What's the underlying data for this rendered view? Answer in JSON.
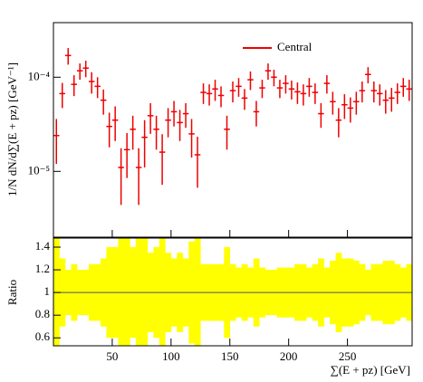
{
  "chart_data": [
    {
      "type": "errorbar",
      "ylabel": "1/N dN/d∑(E + pz) [GeV⁻¹]",
      "xlabel": "∑(E + pz) [GeV]",
      "log_y": true,
      "xlim": [
        0,
        305
      ],
      "xticks": [
        50,
        100,
        150,
        200,
        250
      ],
      "ylim": [
        2e-06,
        0.00038
      ],
      "yticks": [
        {
          "value": 1e-05,
          "label": "10⁻⁵"
        },
        {
          "value": 0.0001,
          "label": "10⁻⁴"
        }
      ],
      "legend_position": "upper right",
      "x": [
        2.5,
        7.5,
        12.5,
        17.5,
        22.5,
        27.5,
        32.5,
        37.5,
        42.5,
        47.5,
        52.5,
        57.5,
        62.5,
        67.5,
        72.5,
        77.5,
        82.5,
        87.5,
        92.5,
        97.5,
        102.5,
        107.5,
        112.5,
        117.5,
        122.5,
        127.5,
        132.5,
        137.5,
        142.5,
        147.5,
        152.5,
        157.5,
        162.5,
        167.5,
        172.5,
        177.5,
        182.5,
        187.5,
        192.5,
        197.5,
        202.5,
        207.5,
        212.5,
        217.5,
        222.5,
        227.5,
        232.5,
        237.5,
        242.5,
        247.5,
        252.5,
        257.5,
        262.5,
        267.5,
        272.5,
        277.5,
        282.5,
        287.5,
        292.5,
        297.5,
        302.5
      ],
      "series": [
        {
          "name": "Central",
          "color": "#ee0000",
          "values": [
            2.4e-05,
            6.7e-05,
            0.00017,
            8.4e-05,
            0.000117,
            0.000125,
            9e-05,
            8e-05,
            5.7e-05,
            3e-05,
            3.5e-05,
            1.1e-05,
            1.7e-05,
            2.8e-05,
            1.1e-05,
            2.3e-05,
            3.9e-05,
            2.8e-05,
            1.6e-05,
            3.5e-05,
            4.3e-05,
            3.3e-05,
            4.1e-05,
            2.5e-05,
            1.5e-05,
            6.9e-05,
            6.7e-05,
            7.5e-05,
            6.4e-05,
            2.8e-05,
            7.2e-05,
            8e-05,
            6e-05,
            9.4e-05,
            4.3e-05,
            7.7e-05,
            0.000117,
            0.0001,
            7.7e-05,
            8.6e-05,
            7.5e-05,
            7e-05,
            6.7e-05,
            8e-05,
            6.9e-05,
            4.1e-05,
            8.6e-05,
            5.5e-05,
            3.5e-05,
            5.1e-05,
            4.7e-05,
            5.5e-05,
            7.2e-05,
            0.000107,
            7.2e-05,
            6.7e-05,
            5.7e-05,
            6e-05,
            6.9e-05,
            8e-05,
            7.5e-05
          ],
          "errors": [
            1.2e-05,
            2e-05,
            3.4e-05,
            2.1e-05,
            2.3e-05,
            2.5e-05,
            2.3e-05,
            2e-05,
            1.7e-05,
            1.2e-05,
            1.4e-05,
            6.6e-06,
            8.5e-06,
            1.1e-05,
            6.6e-06,
            1.2e-05,
            1.4e-05,
            1.1e-05,
            8.8e-06,
            1.2e-05,
            1.3e-05,
            1.2e-05,
            1.2e-05,
            1.1e-05,
            8.3e-06,
            1.7e-05,
            1.7e-05,
            1.9e-05,
            1.6e-05,
            1.1e-05,
            1.8e-05,
            1.8e-05,
            1.5e-05,
            2.1e-05,
            1.3e-05,
            1.7e-05,
            2.3e-05,
            2e-05,
            1.7e-05,
            1.9e-05,
            1.7e-05,
            1.8e-05,
            1.7e-05,
            1.8e-05,
            1.7e-05,
            1.2e-05,
            1.9e-05,
            1.5e-05,
            1.2e-05,
            1.5e-05,
            1.4e-05,
            1.5e-05,
            1.8e-05,
            2.1e-05,
            1.8e-05,
            1.7e-05,
            1.6e-05,
            1.7e-05,
            1.7e-05,
            1.8e-05,
            1.9e-05
          ]
        }
      ]
    },
    {
      "type": "ratio_band",
      "ylabel": "Ratio",
      "ylim": [
        0.53,
        1.48
      ],
      "yticks": [
        0.6,
        0.8,
        1,
        1.2,
        1.4
      ],
      "color": "#ffff00",
      "line_color": "#555555",
      "values": [
        1,
        1,
        1,
        1,
        1,
        1,
        1,
        1,
        1,
        1,
        1,
        1,
        1,
        1,
        1,
        1,
        1,
        1,
        1,
        1,
        1,
        1,
        1,
        1,
        1,
        1,
        1,
        1,
        1,
        1,
        1,
        1,
        1,
        1,
        1,
        1,
        1,
        1,
        1,
        1,
        1,
        1,
        1,
        1,
        1,
        1,
        1,
        1,
        1,
        1,
        1,
        1,
        1,
        1,
        1,
        1,
        1,
        1,
        1,
        1,
        1
      ],
      "errors": [
        0.5,
        0.3,
        0.2,
        0.25,
        0.2,
        0.2,
        0.25,
        0.25,
        0.3,
        0.4,
        0.4,
        0.6,
        0.5,
        0.4,
        0.6,
        0.5,
        0.35,
        0.4,
        0.55,
        0.35,
        0.3,
        0.35,
        0.3,
        0.45,
        0.55,
        0.25,
        0.25,
        0.25,
        0.25,
        0.4,
        0.25,
        0.22,
        0.25,
        0.22,
        0.3,
        0.22,
        0.2,
        0.2,
        0.22,
        0.22,
        0.22,
        0.25,
        0.25,
        0.22,
        0.25,
        0.3,
        0.22,
        0.28,
        0.35,
        0.3,
        0.3,
        0.28,
        0.25,
        0.2,
        0.25,
        0.25,
        0.28,
        0.28,
        0.25,
        0.22,
        0.25
      ]
    }
  ]
}
